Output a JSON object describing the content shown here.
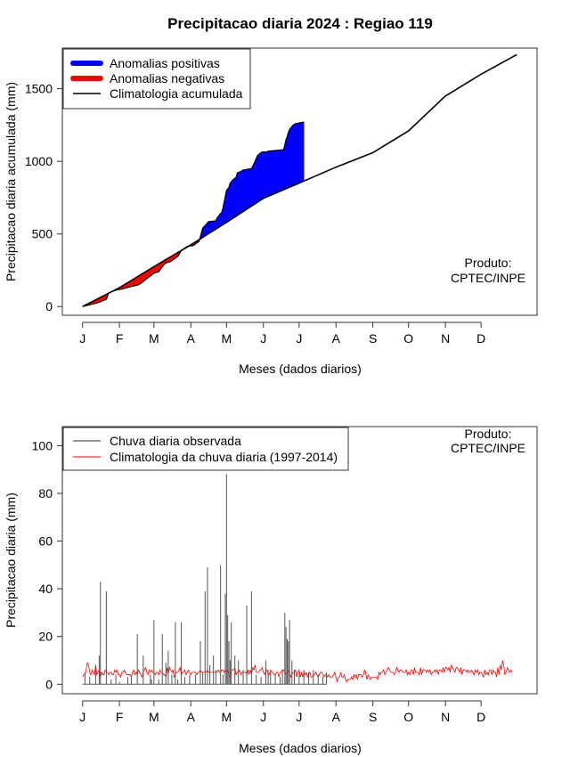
{
  "title": "Precipitacao diaria 2024 : Regiao 119",
  "chart_data": [
    {
      "type": "area",
      "xlabel": "Meses (dados diarios)",
      "ylabel": "Precipitacao diaria acumulada (mm)",
      "months": [
        "J",
        "F",
        "M",
        "A",
        "M",
        "J",
        "J",
        "A",
        "S",
        "O",
        "N",
        "D"
      ],
      "yticks": [
        0,
        500,
        1000,
        1500
      ],
      "ylim": [
        -60,
        1780
      ],
      "xlim": [
        -17,
        382
      ],
      "legend": [
        {
          "label": "Anomalias positivas",
          "color": "#0000ff",
          "kind": "thick"
        },
        {
          "label": "Anomalias negativas",
          "color": "#ff0000",
          "kind": "thick"
        },
        {
          "label": "Climatologia acumulada",
          "color": "#000000",
          "kind": "line"
        }
      ],
      "credit": [
        "Produto:",
        "CPTEC/INPE"
      ],
      "climatology_days": [
        0,
        31,
        60,
        91,
        121,
        152,
        182,
        213,
        244,
        274,
        305,
        335,
        365
      ],
      "climatology_values": [
        0,
        130,
        275,
        425,
        580,
        745,
        850,
        960,
        1060,
        1210,
        1450,
        1600,
        1735
      ],
      "observed_days": [
        0,
        10,
        14,
        20,
        22,
        29,
        33,
        37,
        47,
        50,
        52,
        60,
        64,
        68,
        70,
        74,
        80,
        83,
        88,
        93,
        98,
        101,
        106,
        112,
        113,
        117,
        118,
        121,
        123,
        124,
        126,
        129,
        130,
        133,
        135,
        142,
        145,
        147,
        150,
        151,
        155,
        156,
        169,
        171,
        172,
        173,
        174,
        175,
        176,
        177,
        178,
        179,
        186
      ],
      "observed_values": [
        0,
        20,
        30,
        50,
        95,
        115,
        120,
        130,
        150,
        165,
        180,
        230,
        240,
        285,
        300,
        310,
        345,
        385,
        415,
        420,
        450,
        540,
        585,
        590,
        610,
        650,
        680,
        800,
        820,
        850,
        870,
        890,
        920,
        930,
        940,
        950,
        1000,
        1040,
        1060,
        1065,
        1065,
        1070,
        1080,
        1150,
        1170,
        1200,
        1220,
        1230,
        1240,
        1250,
        1255,
        1260,
        1270
      ]
    },
    {
      "type": "bar",
      "xlabel": "Meses (dados diarios)",
      "ylabel": "Precipitacao diaria (mm)",
      "months": [
        "J",
        "F",
        "M",
        "A",
        "M",
        "J",
        "J",
        "A",
        "S",
        "O",
        "N",
        "D"
      ],
      "yticks": [
        0,
        20,
        40,
        60,
        80,
        100
      ],
      "ylim": [
        -4,
        108
      ],
      "xlim": [
        -17,
        382
      ],
      "legend": [
        {
          "label": "Chuva diaria observada",
          "color": "#555555",
          "kind": "line"
        },
        {
          "label": "Climatologia da chuva diaria (1997-2014)",
          "color": "#ff0000",
          "kind": "line"
        }
      ],
      "credit": [
        "Produto:",
        "CPTEC/INPE"
      ],
      "observed_days": [
        2,
        6,
        11,
        14,
        15,
        20,
        24,
        28,
        31,
        38,
        41,
        46,
        51,
        57,
        58,
        60,
        64,
        67,
        70,
        72,
        75,
        78,
        80,
        83,
        86,
        90,
        95,
        99,
        101,
        103,
        105,
        107,
        110,
        112,
        116,
        118,
        120,
        121,
        122,
        123,
        124,
        125,
        128,
        131,
        135,
        138,
        142,
        146,
        150,
        154,
        156,
        158,
        162,
        166,
        168,
        170,
        171,
        172,
        173,
        174,
        176,
        178,
        182,
        186,
        190,
        194,
        198,
        202,
        205
      ],
      "observed_values": [
        5,
        3,
        8,
        12,
        43,
        39,
        2,
        4,
        1,
        3,
        3,
        21,
        12,
        4,
        2,
        27,
        2,
        21,
        9,
        14,
        4,
        26,
        2,
        26,
        3,
        4,
        4,
        18,
        5,
        39,
        49,
        8,
        12,
        6,
        50,
        4,
        38,
        88,
        29,
        18,
        10,
        26,
        12,
        10,
        6,
        33,
        39,
        4,
        3,
        10,
        6,
        5,
        4,
        3,
        6,
        30,
        24,
        19,
        18,
        27,
        10,
        6,
        4,
        6,
        5,
        6,
        4,
        3,
        5
      ],
      "climatology_series": [
        3,
        4,
        4,
        6,
        9,
        8,
        5,
        4,
        6,
        5,
        4,
        8,
        4,
        5,
        6,
        3,
        5,
        4,
        4,
        6,
        5,
        5,
        4,
        5,
        5,
        4,
        4,
        6,
        5,
        6,
        4,
        4,
        3,
        5,
        5,
        6,
        5,
        4,
        4,
        4,
        4,
        3,
        5,
        6,
        4,
        5,
        4,
        6,
        5,
        4,
        3,
        5,
        6,
        7,
        5,
        4,
        6,
        5,
        6,
        5,
        5,
        4,
        5,
        5,
        4,
        6,
        5,
        5,
        4,
        4,
        3,
        7,
        4,
        7,
        6,
        5,
        6,
        3,
        4,
        5,
        5,
        6,
        7,
        4,
        5,
        5,
        6,
        4,
        5,
        6,
        5,
        4,
        5,
        5,
        5,
        5,
        4,
        5,
        5,
        6,
        5,
        5,
        5,
        5,
        5,
        6,
        5,
        5,
        5,
        5,
        5,
        5,
        5,
        5,
        6,
        5,
        5,
        6,
        6,
        5,
        6,
        5,
        6,
        4,
        3,
        6,
        6,
        6,
        7,
        4,
        5,
        5,
        6,
        4,
        5,
        5,
        5,
        5,
        4,
        6,
        4,
        6,
        4,
        7,
        6,
        8,
        5,
        5,
        5,
        6,
        6,
        7,
        5,
        4,
        6,
        6,
        4,
        4,
        6,
        5,
        5,
        4,
        4,
        5,
        5,
        3,
        5,
        5,
        6,
        6,
        5,
        4,
        5,
        6,
        5,
        3,
        4,
        5,
        5,
        6,
        3,
        5,
        6,
        3,
        5,
        3,
        5,
        4,
        5,
        3,
        4,
        5,
        3,
        3,
        4,
        4,
        5,
        4,
        3,
        4,
        5,
        5,
        4,
        3,
        4,
        4,
        3,
        4,
        3,
        3,
        3,
        4,
        5,
        3,
        1,
        3,
        3,
        5,
        3,
        3,
        4,
        2,
        1,
        2,
        2,
        2,
        3,
        2,
        4,
        3,
        4,
        2,
        4,
        4,
        4,
        3,
        4,
        6,
        5,
        2,
        4,
        3,
        2,
        3,
        3,
        3,
        3,
        3,
        2,
        5,
        4,
        5,
        5,
        6,
        4,
        5,
        6,
        7,
        6,
        5,
        5,
        5,
        4,
        5,
        7,
        6,
        5,
        6,
        6,
        5,
        5,
        5,
        6,
        4,
        5,
        4,
        6,
        6,
        4,
        7,
        5,
        5,
        5,
        4,
        7,
        4,
        6,
        6,
        6,
        5,
        6,
        5,
        6,
        4,
        5,
        5,
        6,
        5,
        6,
        4,
        6,
        6,
        5,
        7,
        5,
        7,
        7,
        6,
        7,
        5,
        8,
        7,
        6,
        5,
        7,
        7,
        6,
        5,
        7,
        4,
        6,
        6,
        6,
        5,
        6,
        5,
        5,
        6,
        5,
        4,
        6,
        5,
        6,
        4,
        5,
        5,
        4,
        3,
        6,
        4,
        5,
        4,
        6,
        6,
        4,
        6,
        5,
        5,
        3,
        7,
        4,
        8,
        6,
        10,
        8,
        4,
        5,
        7,
        6,
        5,
        6,
        5
      ]
    }
  ]
}
